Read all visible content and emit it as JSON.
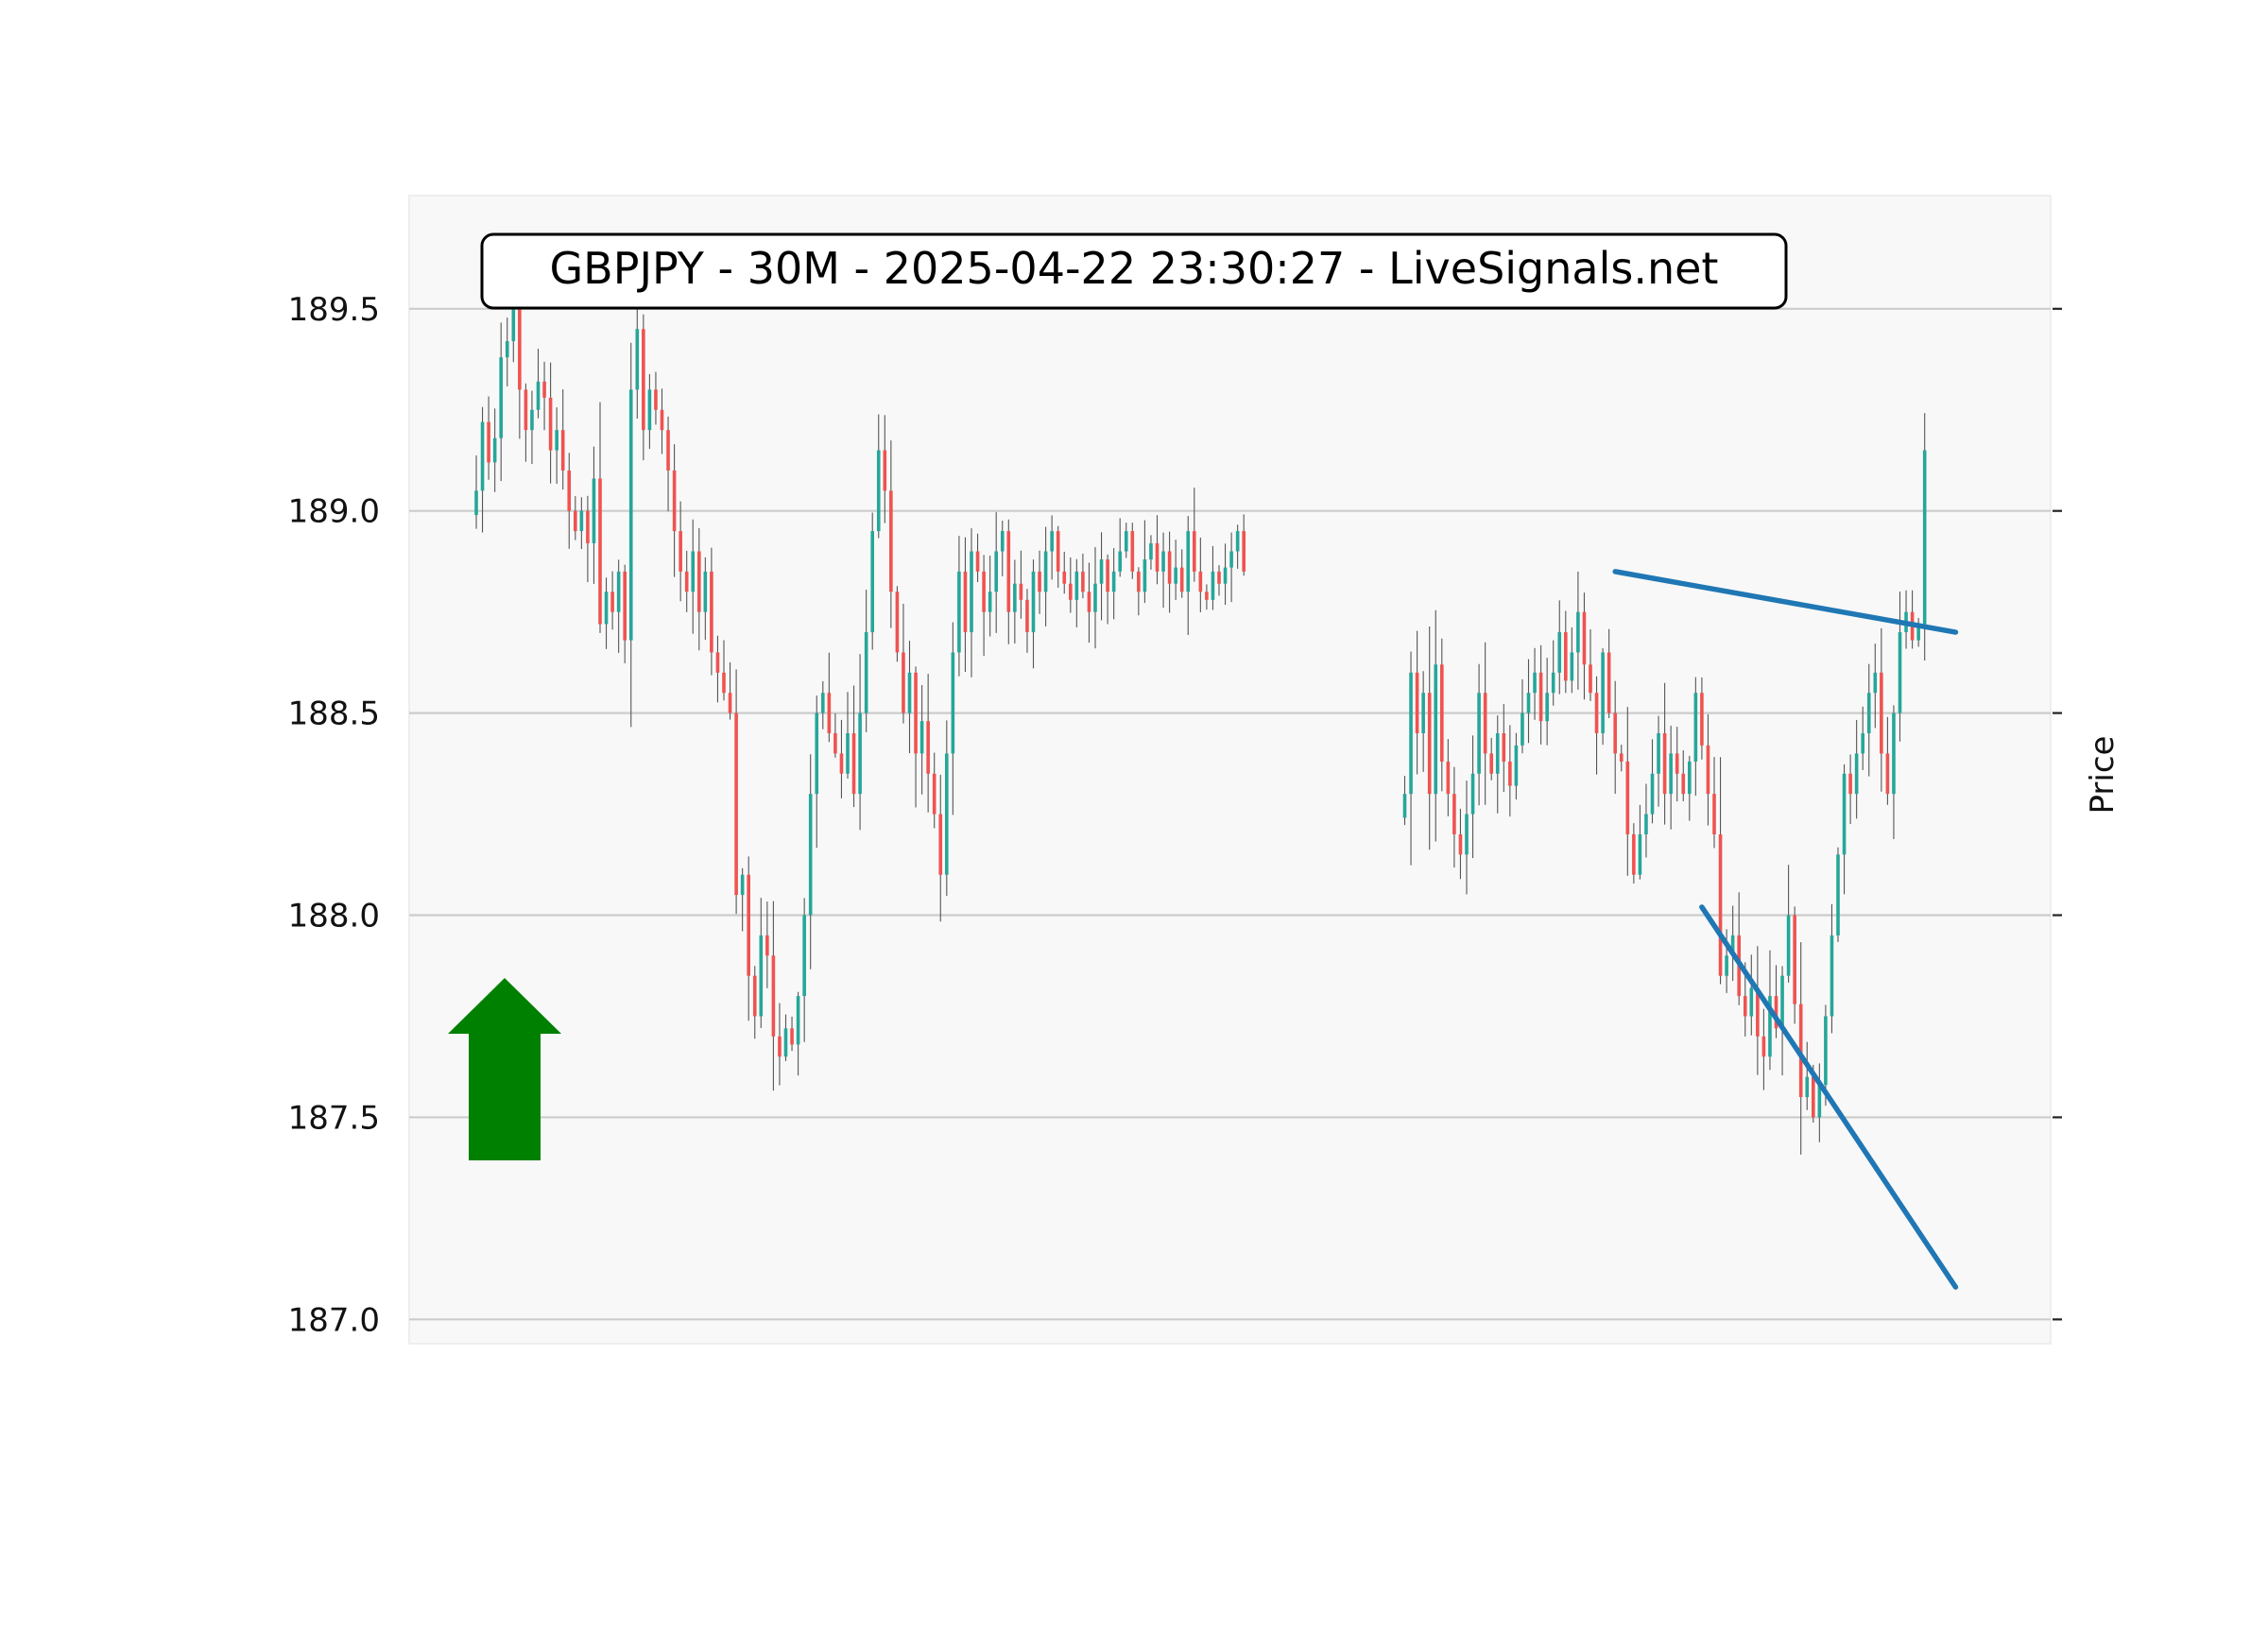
{
  "chart_data": {
    "type": "candlestick",
    "title": "GBPJPY - 30M - 2025-04-22 23:30:27 - LiveSignals.net",
    "ylabel": "Price",
    "xlabel": "",
    "ylim": [
      186.94,
      189.78
    ],
    "yticks": [
      187.0,
      187.5,
      188.0,
      188.5,
      189.0,
      189.5
    ],
    "ytick_labels": [
      "187.0",
      "187.5",
      "188.0",
      "188.5",
      "189.0",
      "189.5"
    ],
    "grid": "horizontal",
    "signal": "up-arrow",
    "colors": {
      "bull": "#26a69a",
      "bear": "#ef5350",
      "trendline": "#1f77b4",
      "arrow": "#008000",
      "plot_bg": "#f8f8f8",
      "grid": "#cccccc"
    },
    "segments": [
      {
        "start_index": 0,
        "closes": [
          189.05,
          189.22,
          189.12,
          189.18,
          189.38,
          189.42,
          189.55,
          189.3,
          189.2,
          189.25,
          189.32,
          189.28,
          189.15,
          189.2,
          189.1,
          189.0,
          188.95,
          189.0,
          188.92,
          189.08,
          188.72,
          188.8,
          188.75,
          188.85,
          188.68,
          189.3,
          189.45,
          189.2,
          189.3,
          189.25,
          189.2,
          189.1,
          188.95,
          188.85,
          188.8,
          188.9,
          188.75,
          188.85,
          188.65,
          188.6,
          188.55,
          188.5,
          188.05,
          188.1,
          187.85,
          187.75,
          187.95,
          187.9,
          187.7,
          187.65,
          187.72,
          187.68,
          187.8,
          188.0,
          188.3,
          188.5,
          188.55,
          188.45,
          188.4,
          188.35,
          188.45,
          188.3,
          188.5,
          188.7,
          188.95,
          189.15,
          189.05,
          188.8,
          188.65,
          188.5,
          188.6,
          188.4,
          188.48,
          188.35,
          188.25,
          188.1,
          188.4,
          188.65,
          188.85,
          188.7,
          188.9,
          188.85,
          188.75,
          188.8,
          188.9,
          188.95,
          188.75,
          188.82,
          188.78,
          188.7,
          188.85,
          188.8,
          188.9,
          188.95,
          188.85,
          188.82,
          188.78,
          188.85,
          188.8,
          188.75,
          188.82,
          188.88,
          188.8,
          188.85,
          188.9,
          188.95,
          188.85,
          188.8,
          188.88,
          188.92,
          188.85,
          188.9,
          188.82,
          188.86,
          188.8,
          188.95,
          188.85,
          188.8,
          188.78,
          188.85,
          188.82,
          188.86,
          188.9,
          188.95,
          188.85
        ]
      },
      {
        "start_index": 150,
        "closes": [
          188.3,
          188.6,
          188.45,
          188.55,
          188.3,
          188.62,
          188.38,
          188.3,
          188.2,
          188.15,
          188.25,
          188.35,
          188.55,
          188.4,
          188.35,
          188.45,
          188.38,
          188.32,
          188.42,
          188.5,
          188.55,
          188.6,
          188.48,
          188.55,
          188.6,
          188.7,
          188.58,
          188.65,
          188.75,
          188.62,
          188.55,
          188.45,
          188.65,
          188.5,
          188.4,
          188.38,
          188.2,
          188.1,
          188.2,
          188.25,
          188.35,
          188.45,
          188.3,
          188.4,
          188.35,
          188.3,
          188.38,
          188.55,
          188.42,
          188.3,
          188.2,
          187.85,
          187.9,
          187.95,
          187.8,
          187.75,
          187.82,
          187.7,
          187.65,
          187.8,
          187.72,
          187.85,
          188.0,
          187.78,
          187.55,
          187.6,
          187.5,
          187.58,
          187.75,
          187.95,
          188.15,
          188.35,
          188.3,
          188.4,
          188.45,
          188.55,
          188.6,
          188.4,
          188.3,
          188.5,
          188.7,
          188.75,
          188.68,
          188.72,
          189.15
        ]
      }
    ],
    "trendlines": [
      {
        "name": "upper",
        "from": {
          "index": 184,
          "price": 188.85
        },
        "to": {
          "index": 239,
          "price": 188.7
        }
      },
      {
        "name": "lower",
        "from": {
          "index": 198,
          "price": 188.02
        },
        "to": {
          "index": 239,
          "price": 187.08
        }
      }
    ]
  }
}
